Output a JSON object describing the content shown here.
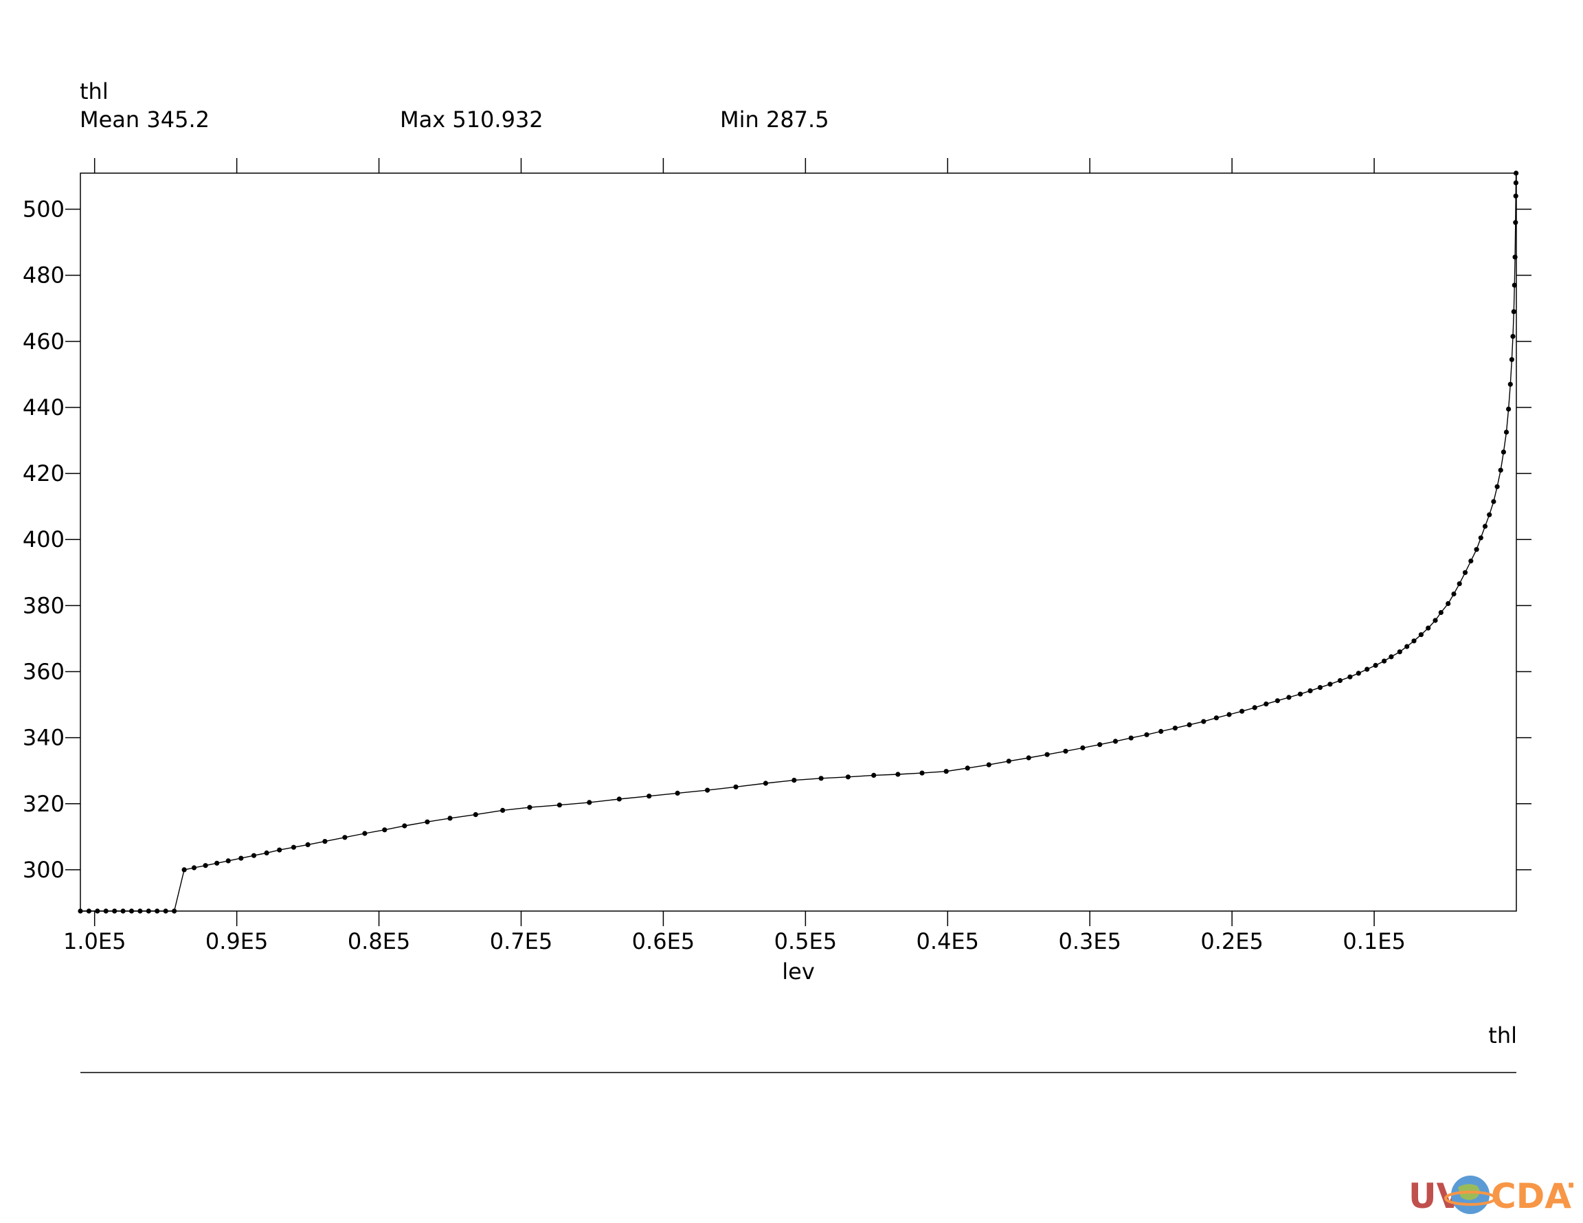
{
  "header": {
    "variable": "thl",
    "mean_label": "Mean 345.2",
    "max_label": "Max 510.932",
    "min_label": "Min 287.5"
  },
  "legend": {
    "label": "thl"
  },
  "logo": {
    "text_left": "UV",
    "text_right": "CDAT"
  },
  "chart_data": {
    "type": "line",
    "xlabel": "lev",
    "ylabel": "",
    "x_reversed": true,
    "xlim": [
      101000,
      0
    ],
    "ylim": [
      287.5,
      510.932
    ],
    "x_ticks": [
      {
        "value": 100000,
        "label": "1.0E5"
      },
      {
        "value": 90000,
        "label": "0.9E5"
      },
      {
        "value": 80000,
        "label": "0.8E5"
      },
      {
        "value": 70000,
        "label": "0.7E5"
      },
      {
        "value": 60000,
        "label": "0.6E5"
      },
      {
        "value": 50000,
        "label": "0.5E5"
      },
      {
        "value": 40000,
        "label": "0.4E5"
      },
      {
        "value": 30000,
        "label": "0.3E5"
      },
      {
        "value": 20000,
        "label": "0.2E5"
      },
      {
        "value": 10000,
        "label": "0.1E5"
      }
    ],
    "y_ticks": [
      {
        "value": 300,
        "label": "300"
      },
      {
        "value": 320,
        "label": "320"
      },
      {
        "value": 340,
        "label": "340"
      },
      {
        "value": 360,
        "label": "360"
      },
      {
        "value": 380,
        "label": "380"
      },
      {
        "value": 400,
        "label": "400"
      },
      {
        "value": 420,
        "label": "420"
      },
      {
        "value": 440,
        "label": "440"
      },
      {
        "value": 460,
        "label": "460"
      },
      {
        "value": 480,
        "label": "480"
      },
      {
        "value": 500,
        "label": "500"
      }
    ],
    "series": [
      {
        "x": [
          101000,
          100400,
          99800,
          99200,
          98600,
          98000,
          97400,
          96800,
          96200,
          95600,
          95000,
          94400,
          93700,
          93000,
          92200,
          91400,
          90600,
          89700,
          88800,
          87900,
          87000,
          86000,
          85000,
          83800,
          82400,
          81000,
          79600,
          78200,
          76600,
          75000,
          73200,
          71300,
          69400,
          67300,
          65200,
          63100,
          61000,
          59000,
          56900,
          54900,
          52800,
          50800,
          48900,
          47000,
          45200,
          43500,
          41800,
          40100,
          38600,
          37100,
          35700,
          34300,
          33000,
          31700,
          30500,
          29300,
          28200,
          27100,
          26000,
          25000,
          24000,
          23000,
          22000,
          21100,
          20200,
          19300,
          18400,
          17600,
          16800,
          16000,
          15200,
          14500,
          13800,
          13100,
          12400,
          11700,
          11100,
          10500,
          9900,
          9300,
          8800,
          8200,
          7700,
          7200,
          6700,
          6200,
          5700,
          5300,
          4800,
          4400,
          4000,
          3600,
          3200,
          2800,
          2500,
          2200,
          1900,
          1600,
          1350,
          1100,
          900,
          700,
          550,
          420,
          320,
          240,
          180,
          130,
          90,
          60,
          40,
          30,
          20
        ],
        "y": [
          287.5,
          287.5,
          287.5,
          287.5,
          287.5,
          287.5,
          287.5,
          287.5,
          287.5,
          287.5,
          287.5,
          287.5,
          300,
          300.6,
          301.3,
          302,
          302.7,
          303.5,
          304.3,
          305.1,
          306,
          306.8,
          307.6,
          308.6,
          309.8,
          311,
          312.1,
          313.3,
          314.5,
          315.6,
          316.7,
          318,
          318.9,
          319.6,
          320.4,
          321.4,
          322.3,
          323.2,
          324.1,
          325.1,
          326.2,
          327.1,
          327.7,
          328.1,
          328.6,
          328.9,
          329.3,
          329.8,
          330.8,
          331.8,
          332.9,
          333.9,
          334.9,
          335.9,
          336.9,
          337.9,
          338.9,
          339.9,
          340.9,
          341.9,
          342.9,
          343.9,
          344.9,
          346,
          347,
          348,
          349.1,
          350.2,
          351.2,
          352.2,
          353.2,
          354.2,
          355.2,
          356.2,
          357.3,
          358.4,
          359.5,
          360.7,
          361.9,
          363.2,
          364.5,
          366,
          367.6,
          369.3,
          371.2,
          373.2,
          375.5,
          377.9,
          380.6,
          383.5,
          386.6,
          390,
          393.5,
          397,
          400.5,
          404,
          407.5,
          411.5,
          416,
          421,
          426.5,
          432.5,
          439.5,
          447,
          454.5,
          461.5,
          469,
          477,
          485.5,
          496,
          504,
          508,
          510.932
        ]
      }
    ]
  }
}
